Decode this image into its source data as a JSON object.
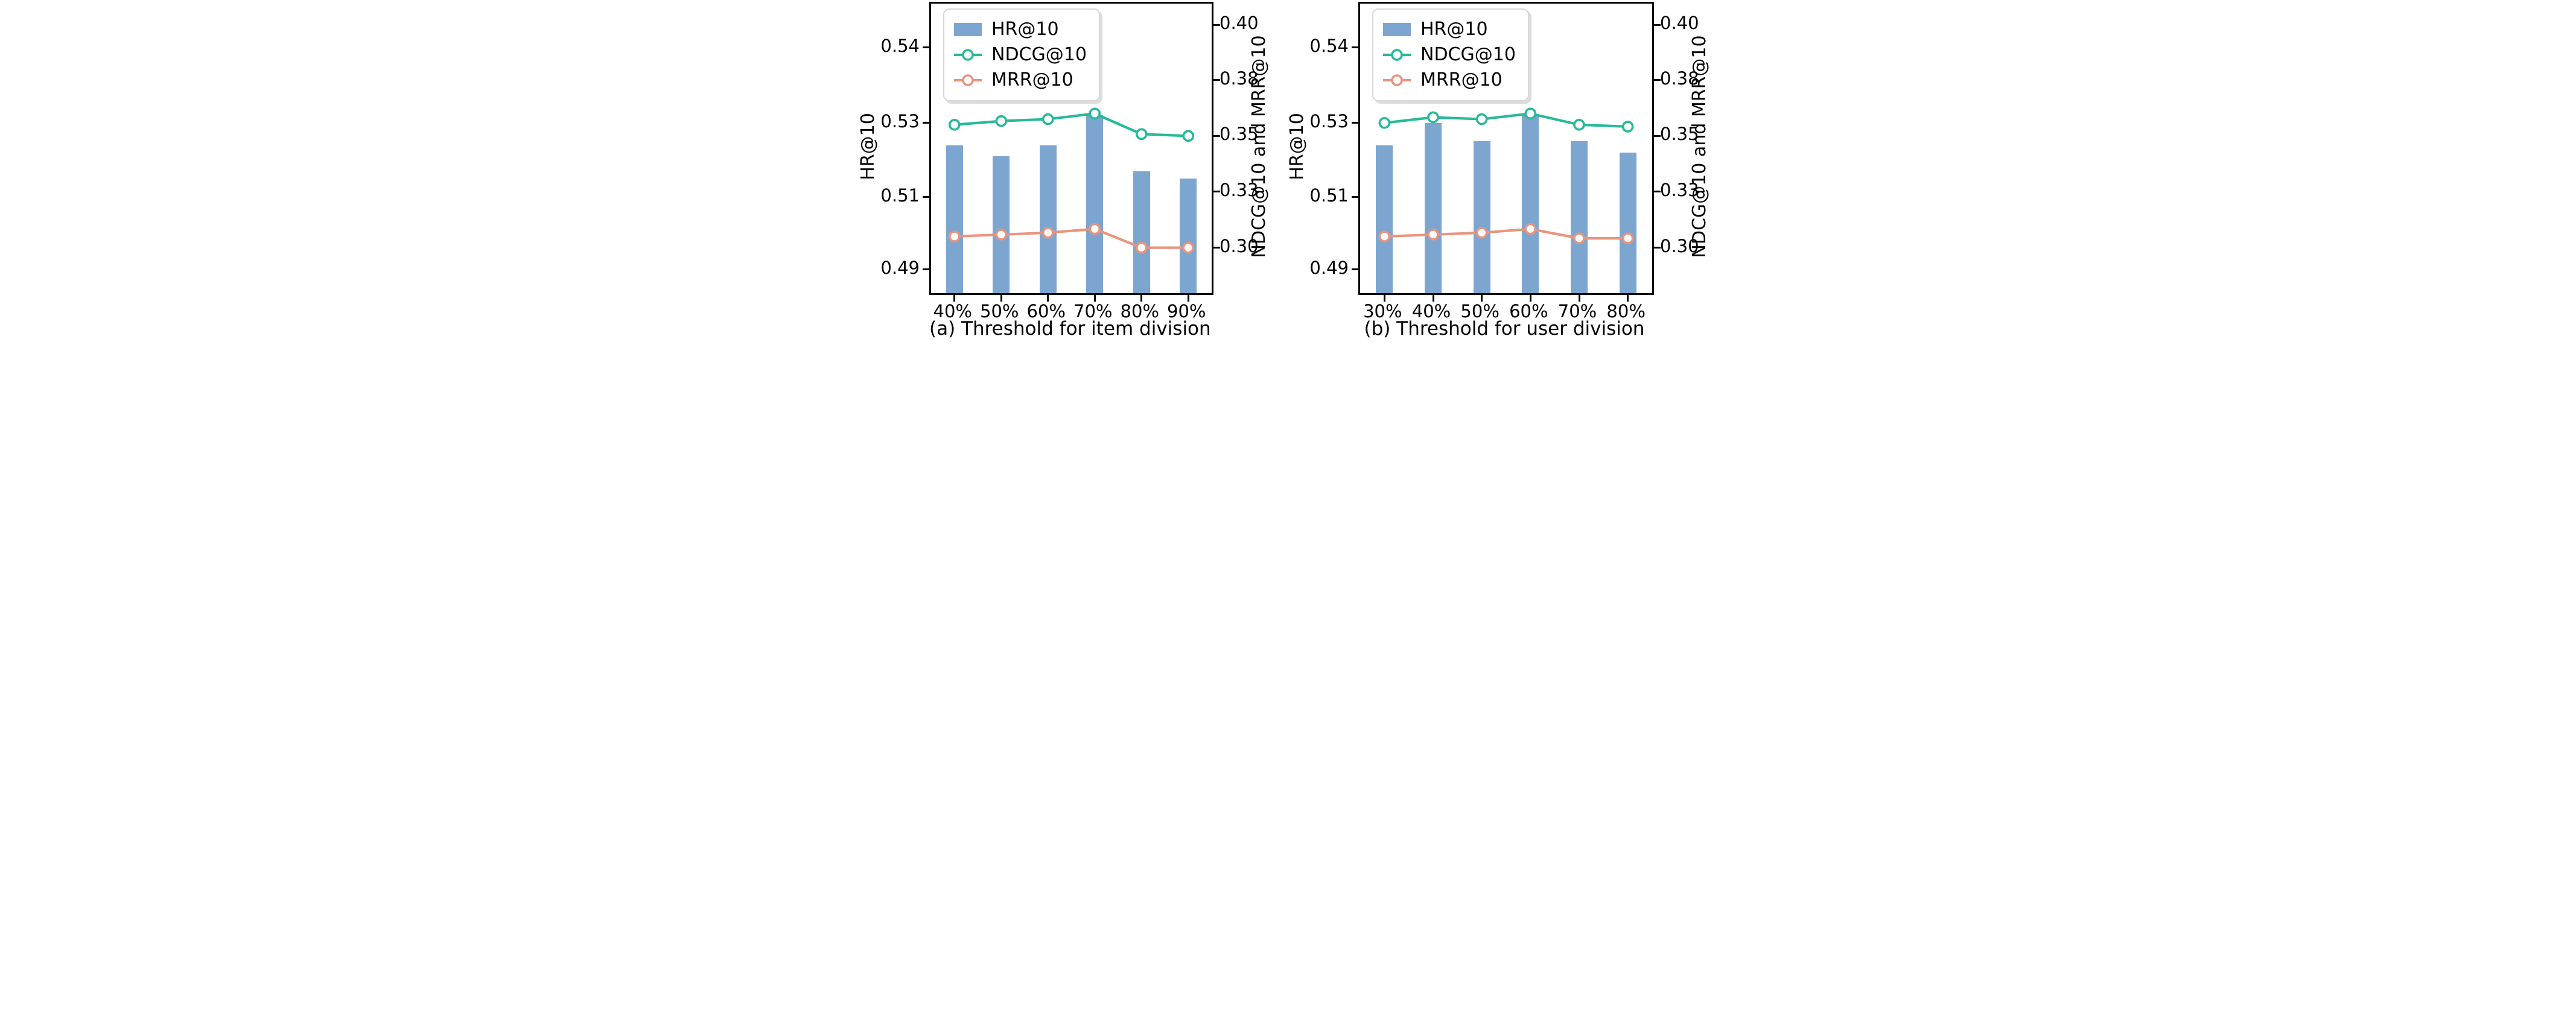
{
  "figure": {
    "background_color": "#ffffff",
    "text_color": "#000000",
    "spine_color": "#000000"
  },
  "legend": {
    "position": "upper left",
    "items": [
      {
        "label": "HR@10",
        "sample_type": "bar",
        "color": "#7ca6cf"
      },
      {
        "label": "NDCG@10",
        "sample_type": "line",
        "color": "#26b99a"
      },
      {
        "label": "MRR@10",
        "sample_type": "line",
        "color": "#e8947e"
      }
    ]
  },
  "chart_data": [
    {
      "type": "bar+line",
      "caption": "(a) Threshold for item division",
      "categories": [
        "40%",
        "50%",
        "60%",
        "70%",
        "80%",
        "90%"
      ],
      "series": [
        {
          "name": "HR@10",
          "type": "bar",
          "axis": "left",
          "color": "#7ca6cf",
          "values": [
            0.524,
            0.521,
            0.524,
            0.531,
            0.517,
            0.515
          ]
        },
        {
          "name": "NDCG@10",
          "type": "line",
          "axis": "right",
          "color": "#26b99a",
          "values": [
            0.356,
            0.358,
            0.359,
            0.362,
            0.351,
            0.35
          ]
        },
        {
          "name": "MRR@10",
          "type": "line",
          "axis": "right",
          "color": "#e8947e",
          "values": [
            0.306,
            0.307,
            0.308,
            0.31,
            0.3,
            0.3
          ]
        }
      ],
      "left_axis": {
        "label": "HR@10",
        "ylim_bottom": 0.484,
        "ylim_top": 0.555,
        "ticks": [
          {
            "label": "0.49",
            "pos": 0.918
          },
          {
            "label": "0.51",
            "pos": 0.668
          },
          {
            "label": "0.53",
            "pos": 0.412
          },
          {
            "label": "0.54",
            "pos": 0.152
          }
        ]
      },
      "right_axis": {
        "label": "NDCG@10 and MRR@10",
        "ylim_bottom": 0.28,
        "ylim_top": 0.41,
        "ticks": [
          {
            "label": "0.30",
            "pos": 0.843
          },
          {
            "label": "0.33",
            "pos": 0.649
          },
          {
            "label": "0.35",
            "pos": 0.457
          },
          {
            "label": "0.38",
            "pos": 0.264
          },
          {
            "label": "0.40",
            "pos": 0.073
          }
        ]
      },
      "grid": false,
      "legend_position": "upper left"
    },
    {
      "type": "bar+line",
      "caption": "(b) Threshold for user division",
      "categories": [
        "30%",
        "40%",
        "50%",
        "60%",
        "70%",
        "80%"
      ],
      "series": [
        {
          "name": "HR@10",
          "type": "bar",
          "axis": "left",
          "color": "#7ca6cf",
          "values": [
            0.524,
            0.53,
            0.525,
            0.531,
            0.525,
            0.522
          ]
        },
        {
          "name": "NDCG@10",
          "type": "line",
          "axis": "right",
          "color": "#26b99a",
          "values": [
            0.357,
            0.36,
            0.359,
            0.362,
            0.356,
            0.355
          ]
        },
        {
          "name": "MRR@10",
          "type": "line",
          "axis": "right",
          "color": "#e8947e",
          "values": [
            0.306,
            0.307,
            0.308,
            0.31,
            0.305,
            0.305
          ]
        }
      ],
      "left_axis": {
        "label": "HR@10",
        "ylim_bottom": 0.484,
        "ylim_top": 0.555,
        "ticks": [
          {
            "label": "0.49",
            "pos": 0.918
          },
          {
            "label": "0.51",
            "pos": 0.668
          },
          {
            "label": "0.53",
            "pos": 0.412
          },
          {
            "label": "0.54",
            "pos": 0.152
          }
        ]
      },
      "right_axis": {
        "label": "NDCG@10 and MRR@10",
        "ylim_bottom": 0.28,
        "ylim_top": 0.41,
        "ticks": [
          {
            "label": "0.30",
            "pos": 0.843
          },
          {
            "label": "0.33",
            "pos": 0.649
          },
          {
            "label": "0.35",
            "pos": 0.457
          },
          {
            "label": "0.38",
            "pos": 0.264
          },
          {
            "label": "0.40",
            "pos": 0.073
          }
        ]
      },
      "grid": false,
      "legend_position": "upper left"
    }
  ]
}
